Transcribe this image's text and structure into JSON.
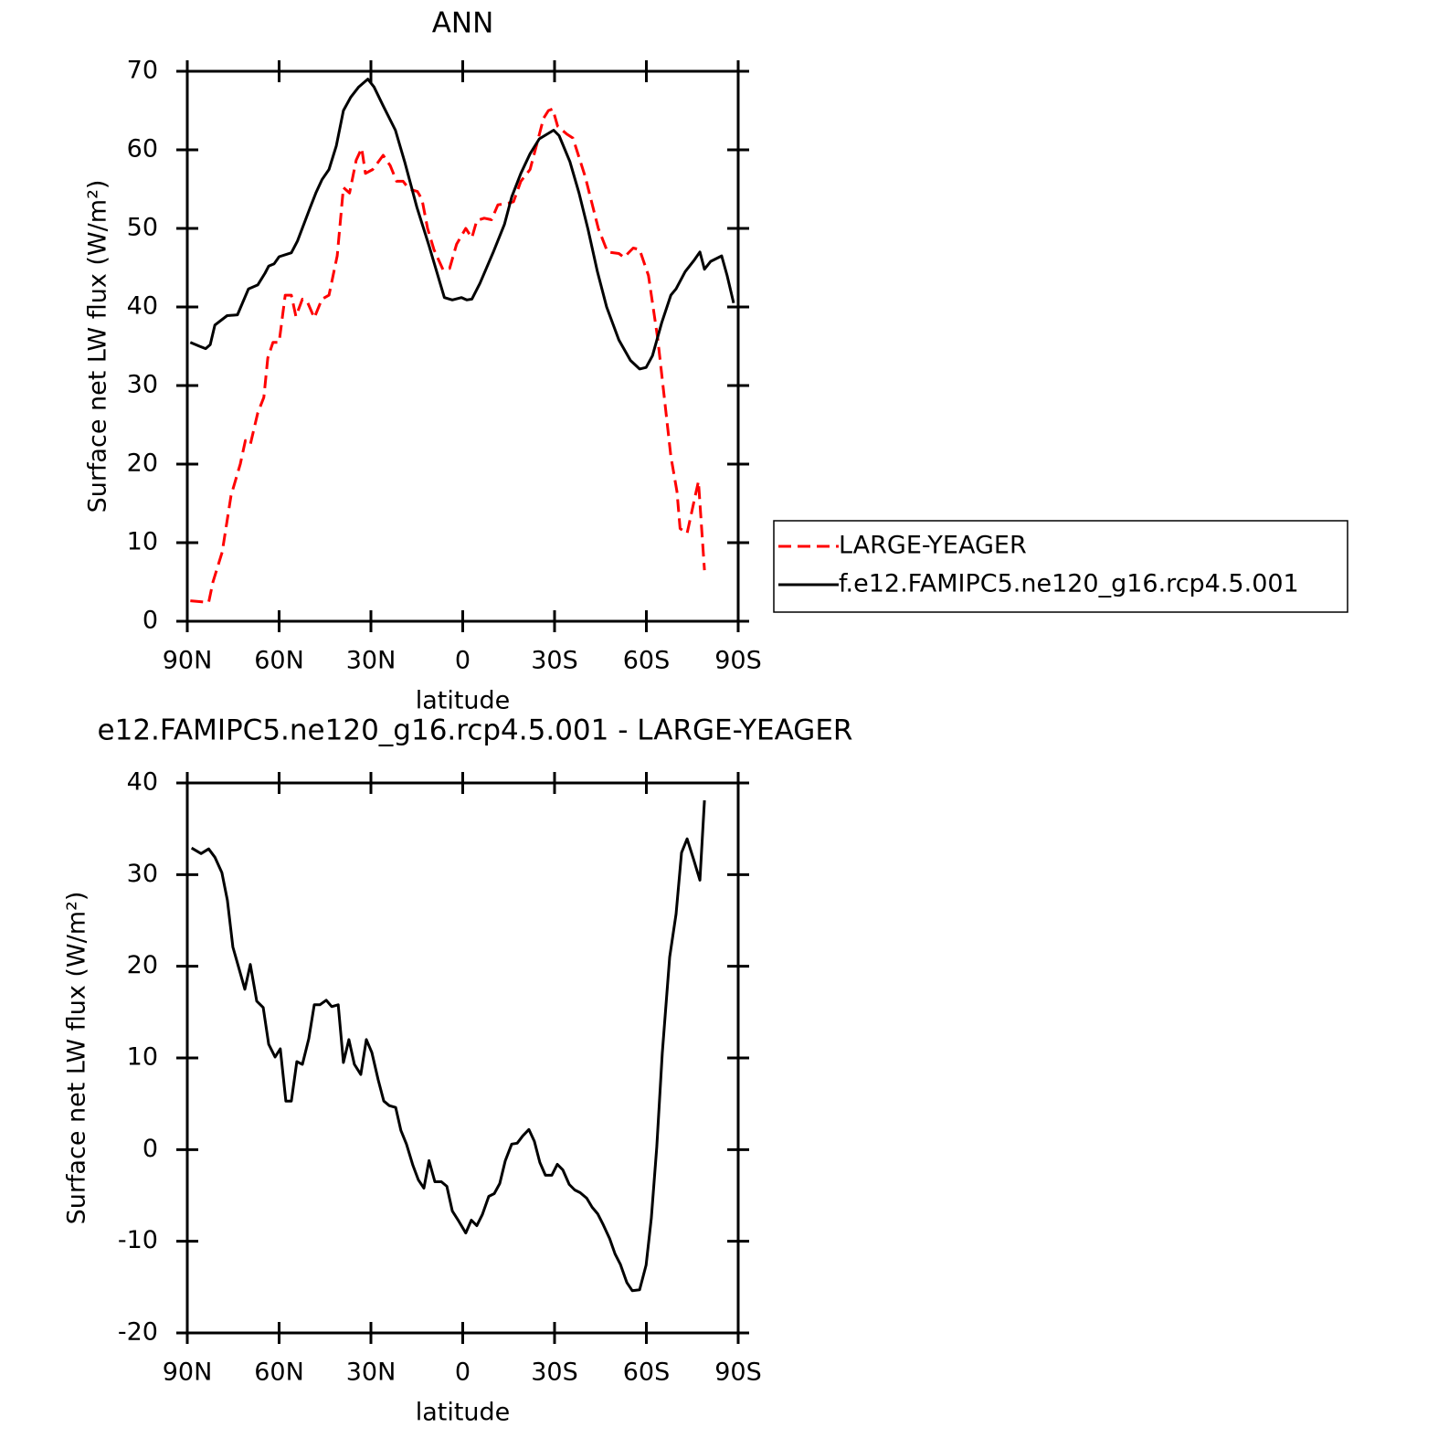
{
  "chart_data": [
    {
      "type": "line",
      "title": "ANN",
      "xlabel": "latitude",
      "ylabel": "Surface net LW flux (W/m²)",
      "xlim": [
        90,
        -90
      ],
      "xticks": [
        {
          "value": 90,
          "label": "90N"
        },
        {
          "value": 60,
          "label": "60N"
        },
        {
          "value": 30,
          "label": "30N"
        },
        0,
        {
          "value": -30,
          "label": "30S"
        },
        {
          "value": -60,
          "label": "60S"
        },
        {
          "value": -90,
          "label": "90S"
        }
      ],
      "ylim": [
        0,
        70
      ],
      "yticks": [
        0,
        10,
        20,
        30,
        40,
        50,
        60,
        70
      ],
      "legend": "right",
      "series": [
        {
          "name": "LARGE-YEAGER",
          "color": "#ff0000",
          "style": "dashed",
          "x": [
            89,
            86,
            83,
            81.6,
            78.6,
            75.7,
            72.7,
            71,
            69.4,
            67,
            65,
            63.7,
            62,
            60,
            58,
            56,
            54.5,
            52.4,
            50.6,
            48.5,
            46,
            43.7,
            41,
            39,
            37,
            34.8,
            33,
            31.8,
            29.4,
            26,
            23.7,
            21.6,
            19.5,
            17.5,
            14.8,
            13.3,
            11.5,
            9.4,
            6.4,
            4.3,
            2,
            -1,
            -3,
            -4.6,
            -7,
            -9.4,
            -11.5,
            -14.8,
            -16.6,
            -19,
            -22,
            -24.4,
            -26.4,
            -28,
            -29.4,
            -31,
            -34,
            -36,
            -40,
            -44.3,
            -47.3,
            -51,
            -52.7,
            -55.7,
            -57.8,
            -60.7,
            -63.7,
            -66,
            -68,
            -70,
            -71,
            -73.3,
            -75.7,
            -77,
            -79
          ],
          "values": [
            2.6,
            2.5,
            2.4,
            5,
            8.8,
            16,
            20,
            23,
            22.5,
            26.5,
            28.5,
            33.5,
            35.5,
            35.5,
            41.5,
            41.5,
            38.8,
            41,
            40.5,
            38.6,
            41,
            41.5,
            46.5,
            55.2,
            54.5,
            58.7,
            60.2,
            57,
            57.5,
            59.3,
            58,
            56,
            56,
            55,
            54.7,
            53.7,
            50,
            47.3,
            44.7,
            44.9,
            48,
            50,
            48.8,
            51,
            51.3,
            51.1,
            53,
            53.2,
            53.4,
            56,
            57.5,
            61,
            64,
            65,
            65.2,
            63,
            62,
            61.5,
            56.6,
            50,
            47,
            46.8,
            46.3,
            47.5,
            47.3,
            44,
            36,
            28,
            21,
            16.5,
            11.8,
            11.2,
            15.5,
            17.8,
            6.5
          ]
        },
        {
          "name": "f.e12.FAMIPC5.ne120_g16.rcp4.5.001",
          "color": "#000000",
          "style": "solid",
          "x": [
            89,
            86,
            84,
            82.5,
            81,
            77,
            73.6,
            70,
            67,
            64.6,
            63.4,
            61.6,
            60,
            56,
            54,
            50,
            48,
            46,
            43.7,
            41.3,
            39,
            36.6,
            34,
            31,
            29,
            26,
            22,
            19,
            15,
            11,
            6,
            3.4,
            0.4,
            -1.3,
            -3,
            -5.6,
            -10,
            -13.6,
            -16,
            -19,
            -22,
            -25,
            -29.7,
            -31.5,
            -35,
            -38,
            -41,
            -44,
            -47,
            -51,
            -54.8,
            -57.8,
            -59.9,
            -62,
            -65,
            -68,
            -69.7,
            -72.7,
            -75.7,
            -77.5,
            -79,
            -81,
            -84.6,
            -86.4,
            -88.5
          ],
          "values": [
            35.5,
            35,
            34.7,
            35.2,
            37.7,
            38.9,
            39,
            42.3,
            42.8,
            44.3,
            45.2,
            45.5,
            46.4,
            46.9,
            48.4,
            52.5,
            54.5,
            56.2,
            57.5,
            60.5,
            65,
            66.7,
            68,
            69,
            68,
            65.6,
            62.5,
            58.5,
            52.7,
            47.8,
            41.2,
            40.9,
            41.2,
            40.9,
            41,
            43,
            47,
            50.5,
            54,
            57,
            59.5,
            61.4,
            62.5,
            61.8,
            58.5,
            54.5,
            49.8,
            44.5,
            40,
            35.8,
            33.2,
            32.1,
            32.3,
            33.8,
            38,
            41.5,
            42.3,
            44.5,
            46,
            47,
            44.8,
            45.8,
            46.5,
            44,
            40.5
          ]
        }
      ]
    },
    {
      "type": "line",
      "title": "e12.FAMIPC5.ne120_g16.rcp4.5.001 - LARGE-YEAGER",
      "xlabel": "latitude",
      "ylabel": "Surface net LW flux (W/m²)",
      "xlim": [
        90,
        -90
      ],
      "xticks": [
        {
          "value": 90,
          "label": "90N"
        },
        {
          "value": 60,
          "label": "60N"
        },
        {
          "value": 30,
          "label": "30N"
        },
        0,
        {
          "value": -30,
          "label": "30S"
        },
        {
          "value": -60,
          "label": "60S"
        },
        {
          "value": -90,
          "label": "90S"
        }
      ],
      "ylim": [
        -20,
        40
      ],
      "yticks": [
        -20,
        -10,
        0,
        10,
        20,
        30,
        40
      ],
      "series": [
        {
          "color": "#000000",
          "style": "solid",
          "x": [
            88.6,
            85.5,
            83,
            81,
            78.7,
            76.9,
            75.1,
            73.3,
            71.2,
            69.4,
            67.3,
            65.2,
            63.4,
            61.3,
            59.6,
            57.8,
            56,
            54.2,
            52.4,
            50.3,
            48.5,
            46.7,
            44.6,
            42.8,
            40.7,
            39,
            37.2,
            35.4,
            33.3,
            31.5,
            29.7,
            27.6,
            25.8,
            24,
            21.9,
            20.2,
            18.4,
            16.3,
            14.5,
            12.7,
            11,
            9.1,
            7,
            5.2,
            3.4,
            1.3,
            -1,
            -2.8,
            -4.6,
            -6.4,
            -8.5,
            -10.3,
            -12.1,
            -13.9,
            -16,
            -17.8,
            -19.6,
            -21.6,
            -23.4,
            -25.2,
            -27,
            -29.1,
            -30.9,
            -32.7,
            -34.8,
            -36.6,
            -38.4,
            -40.5,
            -42.3,
            -44.1,
            -45.9,
            -48,
            -49.8,
            -51.5,
            -53.6,
            -55.4,
            -57.8,
            -59.9,
            -61.6,
            -63.4,
            -65.2,
            -67.6,
            -69.7,
            -71.5,
            -73.3,
            -75.4,
            -77.5,
            -79
          ],
          "values": [
            32.9,
            32.3,
            32.8,
            31.9,
            30.2,
            27.2,
            22.1,
            20,
            17.5,
            20.2,
            16.2,
            15.5,
            11.5,
            10.1,
            11,
            5.3,
            5.3,
            9.6,
            9.3,
            12.1,
            15.8,
            15.8,
            16.3,
            15.6,
            15.8,
            9.5,
            12,
            9.3,
            8.2,
            12,
            10.6,
            7.6,
            5.3,
            4.8,
            4.6,
            2.1,
            0.6,
            -1.7,
            -3.3,
            -4.2,
            -1.2,
            -3.5,
            -3.5,
            -4,
            -6.7,
            -7.8,
            -9.1,
            -7.7,
            -8.3,
            -7.1,
            -5.1,
            -4.8,
            -3.7,
            -1.2,
            0.6,
            0.7,
            1.5,
            2.2,
            0.9,
            -1.4,
            -2.8,
            -2.8,
            -1.6,
            -2.2,
            -3.8,
            -4.4,
            -4.7,
            -5.3,
            -6.3,
            -7,
            -8.2,
            -9.7,
            -11.4,
            -12.5,
            -14.5,
            -15.4,
            -15.3,
            -12.6,
            -7.5,
            0.3,
            10.5,
            21,
            25.7,
            32.4,
            33.9,
            31.7,
            29.4,
            38.1
          ]
        }
      ]
    }
  ]
}
